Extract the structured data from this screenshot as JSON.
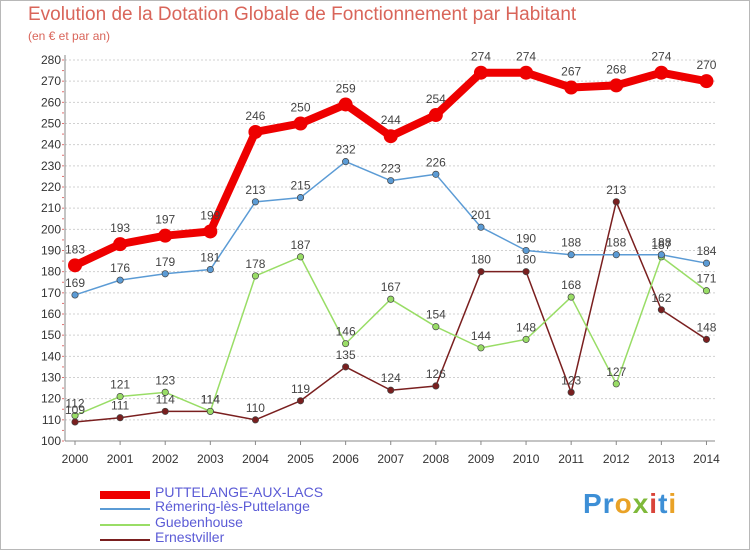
{
  "title": "Evolution de la Dotation Globale de Fonctionnement par Habitant",
  "subtitle": "(en € et par an)",
  "logo": {
    "text": "Proxiti",
    "letter_colors": [
      "#3d8fd6",
      "#3d8fd6",
      "#e9a227",
      "#7fb93a",
      "#d9443a",
      "#3d8fd6",
      "#e9a227"
    ]
  },
  "chart_data": {
    "type": "line",
    "title": "Evolution de la Dotation Globale de Fonctionnement par Habitant",
    "subtitle": "(en € et par an)",
    "x": [
      "2000",
      "2001",
      "2002",
      "2003",
      "2004",
      "2005",
      "2006",
      "2007",
      "2008",
      "2009",
      "2010",
      "2011",
      "2012",
      "2013",
      "2014"
    ],
    "ylim": [
      100,
      280
    ],
    "yticks": [
      100,
      110,
      120,
      130,
      140,
      150,
      160,
      170,
      180,
      190,
      200,
      210,
      220,
      230,
      240,
      250,
      260,
      270,
      280
    ],
    "grid": "horizontal dashed",
    "legend_position": "bottom-left",
    "series": [
      {
        "name": "PUTTELANGE-AUX-LACS",
        "color": "#ee0000",
        "values": [
          183,
          193,
          197,
          199,
          246,
          250,
          259,
          244,
          254,
          274,
          274,
          267,
          268,
          274,
          270
        ],
        "labels": [
          "183",
          "193",
          "197",
          "199",
          "246",
          "250",
          "259",
          "244",
          "254",
          "274",
          "274",
          "267",
          "268",
          "274",
          "270"
        ]
      },
      {
        "name": "Rémering-lès-Puttelange",
        "color": "#5b9bd5",
        "values": [
          169,
          176,
          179,
          181,
          213,
          215,
          232,
          223,
          226,
          201,
          190,
          188,
          188,
          188,
          184
        ],
        "labels": [
          "169",
          "176",
          "179",
          "181",
          "213",
          "215",
          "232",
          "223",
          "226",
          "201",
          "190",
          "188",
          "188",
          "188",
          "184"
        ]
      },
      {
        "name": "Guebenhouse",
        "color": "#99dd66",
        "values": [
          112,
          121,
          123,
          114,
          178,
          187,
          146,
          167,
          154,
          144,
          148,
          168,
          127,
          187,
          171
        ],
        "labels": [
          "112",
          "121",
          "123",
          "114",
          "178",
          "187",
          "146",
          "167",
          "154",
          "144",
          "148",
          "168",
          "127",
          "187",
          "171"
        ]
      },
      {
        "name": "Ernestviller",
        "color": "#7a1f1f",
        "values": [
          109,
          111,
          114,
          114,
          110,
          119,
          135,
          124,
          126,
          180,
          180,
          123,
          213,
          162,
          148
        ],
        "labels": [
          "109",
          "111",
          "114",
          "114",
          "110",
          "119",
          "135",
          "124",
          "126",
          "180",
          "180",
          "123",
          "213",
          "162",
          "148"
        ]
      }
    ]
  }
}
